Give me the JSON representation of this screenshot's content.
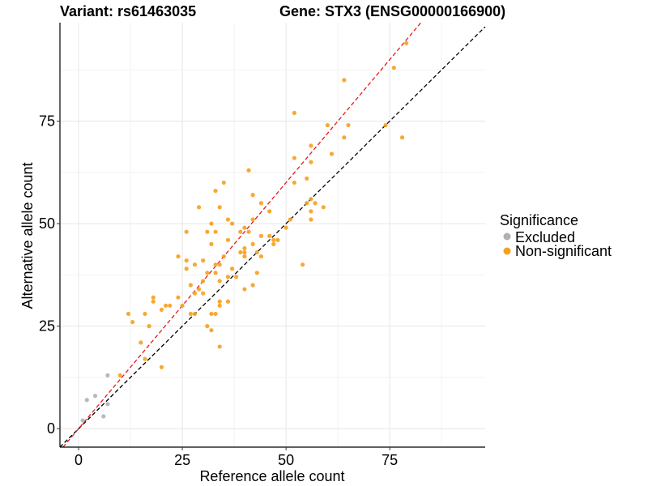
{
  "titles": {
    "variant": "Variant: rs61463035",
    "gene": "Gene: STX3 (ENSG00000166900)"
  },
  "chart_data": {
    "type": "scatter",
    "xlabel": "Reference allele count",
    "ylabel": "Alternative allele count",
    "xlim": [
      -4.5,
      98
    ],
    "ylim": [
      -4.5,
      99
    ],
    "x_ticks": [
      0,
      25,
      50,
      75
    ],
    "y_ticks": [
      0,
      25,
      50,
      75
    ],
    "grid": true,
    "legend": {
      "title": "Significance",
      "placement": "right",
      "entries": [
        {
          "label": "Excluded",
          "color": "#b0b0b0"
        },
        {
          "label": "Non-significant",
          "color": "#f5a01e"
        }
      ]
    },
    "reference_lines": [
      {
        "style": "dashed",
        "color": "#000000",
        "slope": 1.0,
        "intercept": 0
      },
      {
        "style": "dashed",
        "color": "#e41a1c",
        "slope": 1.2,
        "intercept": 0
      }
    ],
    "series": [
      {
        "name": "Excluded",
        "color": "#b0b0b0",
        "points": [
          [
            1,
            2
          ],
          [
            2,
            7
          ],
          [
            4,
            8
          ],
          [
            7,
            13
          ],
          [
            7,
            6
          ],
          [
            6,
            3
          ]
        ]
      },
      {
        "name": "Non-significant",
        "color": "#f5a01e",
        "points": [
          [
            79,
            94
          ],
          [
            76,
            88
          ],
          [
            64,
            85
          ],
          [
            52,
            77
          ],
          [
            60,
            74
          ],
          [
            74,
            74
          ],
          [
            65,
            74
          ],
          [
            78,
            71
          ],
          [
            64,
            71
          ],
          [
            56,
            69
          ],
          [
            61,
            67
          ],
          [
            52,
            66
          ],
          [
            56,
            65
          ],
          [
            55,
            61
          ],
          [
            52,
            60
          ],
          [
            41,
            63
          ],
          [
            35,
            60
          ],
          [
            56,
            56
          ],
          [
            57,
            55
          ],
          [
            55,
            55
          ],
          [
            44,
            55
          ],
          [
            42,
            57
          ],
          [
            33,
            58
          ],
          [
            29,
            54
          ],
          [
            34,
            54
          ],
          [
            46,
            53
          ],
          [
            56,
            53
          ],
          [
            59,
            54
          ],
          [
            42,
            51
          ],
          [
            36,
            51
          ],
          [
            37,
            50
          ],
          [
            32,
            50
          ],
          [
            56,
            51
          ],
          [
            51,
            51
          ],
          [
            26,
            48
          ],
          [
            31,
            48
          ],
          [
            33,
            48
          ],
          [
            39,
            48
          ],
          [
            40,
            49
          ],
          [
            41,
            48
          ],
          [
            46,
            47
          ],
          [
            44,
            47
          ],
          [
            47,
            46
          ],
          [
            47,
            45
          ],
          [
            50,
            49
          ],
          [
            42,
            45
          ],
          [
            40,
            44
          ],
          [
            40,
            43
          ],
          [
            40,
            42
          ],
          [
            36,
            46
          ],
          [
            39,
            43
          ],
          [
            43,
            43
          ],
          [
            32,
            45
          ],
          [
            35,
            42
          ],
          [
            33,
            40
          ],
          [
            30,
            41
          ],
          [
            28,
            40
          ],
          [
            26,
            41
          ],
          [
            24,
            42
          ],
          [
            26,
            39
          ],
          [
            34,
            40
          ],
          [
            37,
            39
          ],
          [
            33,
            38
          ],
          [
            36,
            37
          ],
          [
            43,
            38
          ],
          [
            31,
            38
          ],
          [
            38,
            37
          ],
          [
            30,
            36
          ],
          [
            34,
            36
          ],
          [
            24,
            32
          ],
          [
            21,
            30
          ],
          [
            20,
            29
          ],
          [
            22,
            30
          ],
          [
            18,
            31
          ],
          [
            18,
            32
          ],
          [
            27,
            35
          ],
          [
            29,
            34
          ],
          [
            30,
            33
          ],
          [
            28,
            33
          ],
          [
            27,
            28
          ],
          [
            28,
            28
          ],
          [
            25,
            30
          ],
          [
            34,
            30
          ],
          [
            32,
            28
          ],
          [
            33,
            28
          ],
          [
            34,
            31
          ],
          [
            36,
            31
          ],
          [
            40,
            34
          ],
          [
            42,
            35
          ],
          [
            44,
            42
          ],
          [
            12,
            28
          ],
          [
            13,
            26
          ],
          [
            16,
            28
          ],
          [
            17,
            25
          ],
          [
            15,
            21
          ],
          [
            16,
            17
          ],
          [
            20,
            15
          ],
          [
            10,
            13
          ],
          [
            31,
            25
          ],
          [
            32,
            24
          ],
          [
            34,
            20
          ],
          [
            54,
            40
          ],
          [
            48,
            46
          ]
        ]
      }
    ]
  }
}
